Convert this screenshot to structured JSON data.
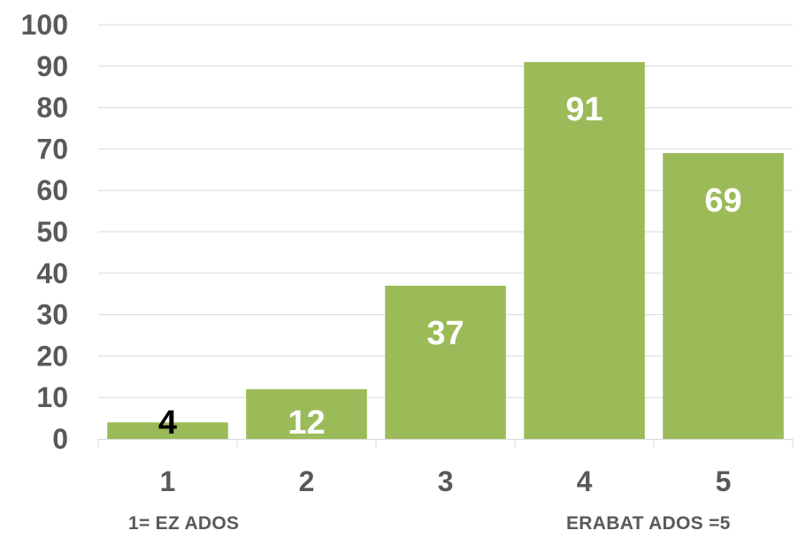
{
  "chart_data": {
    "type": "bar",
    "categories": [
      "1",
      "2",
      "3",
      "4",
      "5"
    ],
    "values": [
      4,
      12,
      37,
      91,
      69
    ],
    "ylim": [
      0,
      100
    ],
    "yticks": [
      0,
      10,
      20,
      30,
      40,
      50,
      60,
      70,
      80,
      90,
      100
    ],
    "grid": true,
    "legend": "none",
    "bar_color": "#9bbb59",
    "gridline_color": "#d9d9d9",
    "tick_color": "#595959",
    "data_label_colors": [
      "#000000",
      "#ffffff",
      "#ffffff",
      "#ffffff",
      "#ffffff"
    ]
  },
  "annotations": {
    "left": "1= EZ ADOS",
    "right": "ERABAT ADOS =5"
  }
}
